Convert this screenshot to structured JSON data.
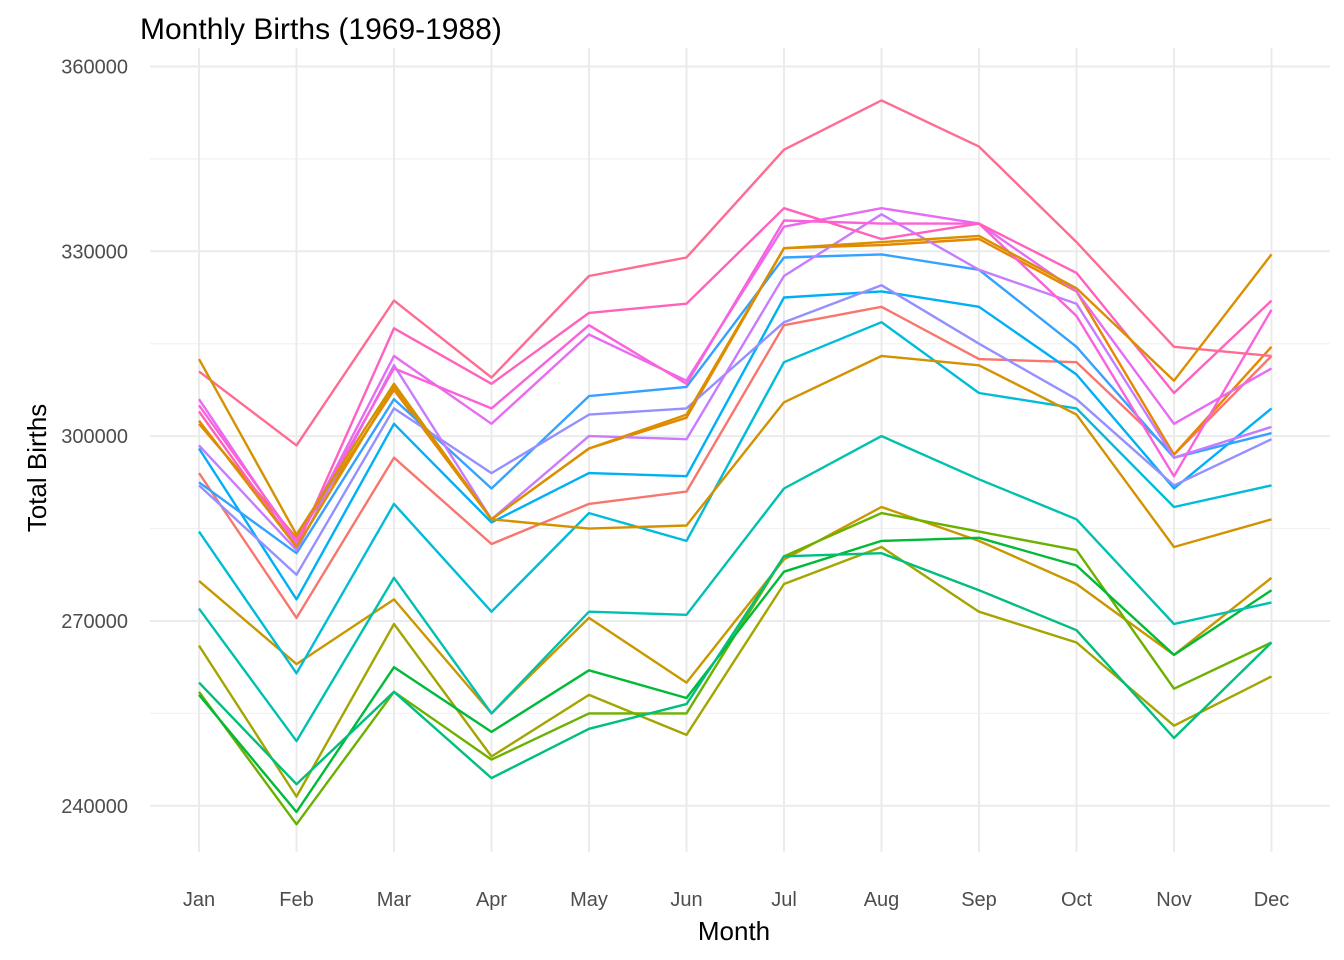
{
  "chart_data": {
    "type": "line",
    "title": "Monthly Births (1969-1988)",
    "xlabel": "Month",
    "ylabel": "Total Births",
    "categories": [
      "Jan",
      "Feb",
      "Mar",
      "Apr",
      "May",
      "Jun",
      "Jul",
      "Aug",
      "Sep",
      "Oct",
      "Nov",
      "Dec"
    ],
    "ylim": [
      232500,
      363000
    ],
    "yticks": [
      240000,
      270000,
      300000,
      330000,
      360000
    ],
    "ytick_labels": [
      "240000",
      "270000",
      "300000",
      "330000",
      "360000"
    ],
    "grid": true,
    "legend": "none",
    "series": [
      {
        "color": "#F8766D",
        "values": [
          294000,
          270500,
          296500,
          282500,
          289000,
          291000,
          318000,
          321000,
          312500,
          312000,
          297000,
          313000
        ]
      },
      {
        "color": "#E58700",
        "values": [
          302000,
          283500,
          307500,
          286500,
          298000,
          303000,
          330500,
          331000,
          332000,
          323500,
          297000,
          314500
        ]
      },
      {
        "color": "#C99800",
        "values": [
          276500,
          263000,
          273500,
          255000,
          270500,
          260000,
          280000,
          288500,
          283000,
          276000,
          264500,
          277000
        ]
      },
      {
        "color": "#A3A500",
        "values": [
          266000,
          241500,
          269500,
          248000,
          258000,
          251500,
          276000,
          282000,
          271500,
          266500,
          253000,
          261000
        ]
      },
      {
        "color": "#6BB100",
        "values": [
          258500,
          237000,
          258500,
          247500,
          255000,
          255000,
          280500,
          287500,
          284500,
          281500,
          259000,
          266500
        ]
      },
      {
        "color": "#00BA38",
        "values": [
          258000,
          239000,
          262500,
          252000,
          262000,
          257500,
          278000,
          283000,
          283500,
          279000,
          264500,
          275000
        ]
      },
      {
        "color": "#00BF7D",
        "values": [
          260000,
          243500,
          258500,
          244500,
          252500,
          256500,
          280500,
          281000,
          275000,
          268500,
          251000,
          266500
        ]
      },
      {
        "color": "#00C0AF",
        "values": [
          272000,
          250500,
          277000,
          255000,
          271500,
          271000,
          291500,
          300000,
          293000,
          286500,
          269500,
          273000
        ]
      },
      {
        "color": "#00BCD8",
        "values": [
          284500,
          261500,
          289000,
          271500,
          287500,
          283000,
          312000,
          318500,
          307000,
          304500,
          288500,
          292000
        ]
      },
      {
        "color": "#00B0F6",
        "values": [
          298000,
          273500,
          302000,
          286000,
          294000,
          293500,
          322500,
          323500,
          321000,
          310000,
          291500,
          304500
        ]
      },
      {
        "color": "#35A2FF",
        "values": [
          292500,
          281000,
          306000,
          291500,
          306500,
          308000,
          329000,
          329500,
          327000,
          314500,
          296500,
          300500
        ]
      },
      {
        "color": "#9590FF",
        "values": [
          292000,
          277500,
          304500,
          294000,
          303500,
          304500,
          318500,
          324500,
          315000,
          306000,
          292000,
          299500
        ]
      },
      {
        "color": "#C77CFF",
        "values": [
          298500,
          281500,
          311500,
          286500,
          300000,
          299500,
          326000,
          336000,
          327000,
          321500,
          296500,
          301500
        ]
      },
      {
        "color": "#E76BF3",
        "values": [
          306000,
          282500,
          313000,
          302000,
          316500,
          309000,
          334000,
          337000,
          334500,
          323500,
          302000,
          311000
        ]
      },
      {
        "color": "#FA62DB",
        "values": [
          305000,
          283000,
          311000,
          304500,
          318000,
          308500,
          335000,
          334500,
          334500,
          319500,
          293500,
          320500
        ]
      },
      {
        "color": "#FF62BC",
        "values": [
          304000,
          282000,
          317500,
          308500,
          320000,
          321500,
          337000,
          332000,
          334500,
          326500,
          307000,
          322000
        ]
      },
      {
        "color": "#FF6C91",
        "values": [
          310500,
          298500,
          322000,
          309500,
          326000,
          329000,
          346500,
          354500,
          347000,
          331500,
          314500,
          313000
        ]
      },
      {
        "color": "#D39200",
        "values": [
          312500,
          284000,
          308500,
          286500,
          285000,
          285500,
          305500,
          313000,
          311500,
          303500,
          282000,
          286500
        ]
      },
      {
        "color": "#DB8E00",
        "values": [
          302500,
          282000,
          308000,
          286500,
          298000,
          303500,
          330500,
          331500,
          332500,
          324000,
          309000,
          329500
        ]
      }
    ]
  }
}
